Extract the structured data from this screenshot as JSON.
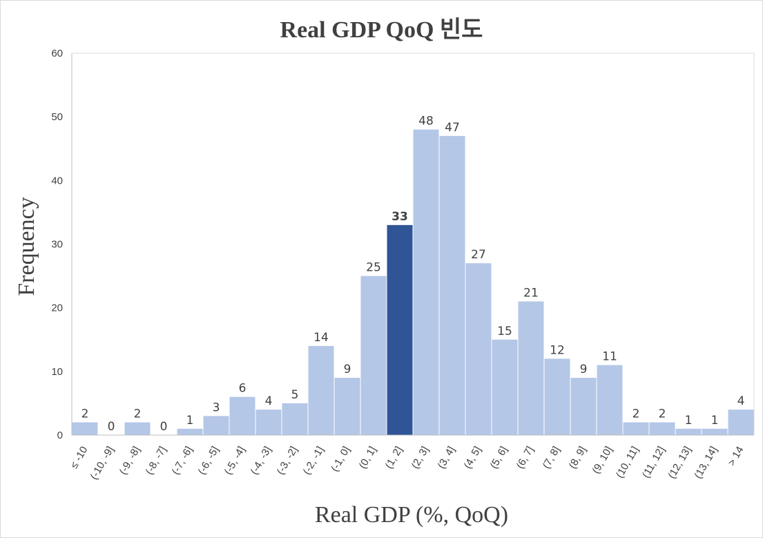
{
  "chart_data": {
    "type": "bar",
    "title": "Real GDP QoQ 빈도",
    "xlabel": "Real GDP (%, QoQ)",
    "ylabel": "Frequency",
    "categories": [
      "≤ -10",
      "(-10, -9]",
      "(-9, -8]",
      "(-8, -7]",
      "(-7, -6]",
      "(-6, -5]",
      "(-5, -4]",
      "(-4, -3]",
      "(-3, -2]",
      "(-2, -1]",
      "(-1, 0]",
      "(0, 1]",
      "(1, 2]",
      "(2, 3]",
      "(3, 4]",
      "(4, 5]",
      "(5, 6]",
      "(6, 7]",
      "(7, 8]",
      "(8, 9]",
      "(9, 10]",
      "(10, 11]",
      "(11, 12]",
      "(12, 13]",
      "(13, 14]",
      "> 14"
    ],
    "values": [
      2,
      0,
      2,
      0,
      1,
      3,
      6,
      4,
      5,
      14,
      9,
      25,
      33,
      48,
      47,
      27,
      15,
      21,
      12,
      9,
      11,
      2,
      2,
      1,
      1,
      4
    ],
    "highlight_category": "(1, 2]",
    "ylim": [
      0,
      60
    ],
    "yticks": [
      0,
      10,
      20,
      30,
      40,
      50,
      60
    ],
    "grid": false,
    "legend": "none",
    "colors": {
      "bar": "#b4c7e7",
      "highlight": "#2f5597",
      "text": "#404040",
      "axis": "#bfbfbf"
    }
  }
}
